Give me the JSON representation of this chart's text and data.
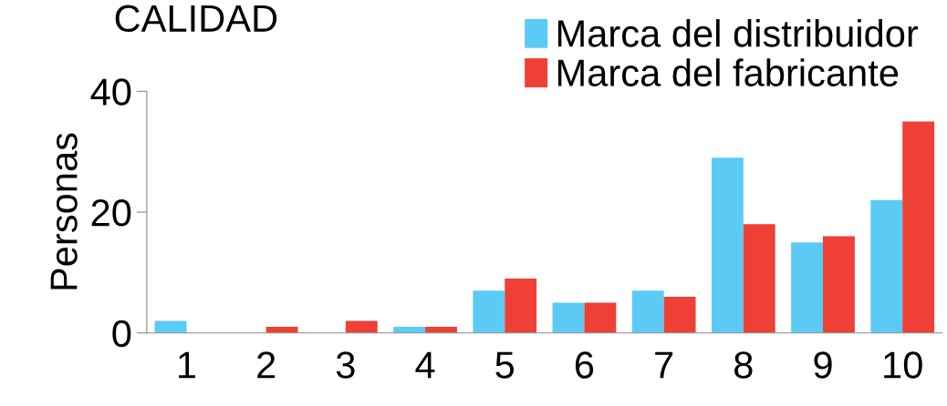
{
  "chart_data": {
    "type": "bar",
    "title": "CALIDAD",
    "ylabel": "Personas",
    "categories": [
      "1",
      "2",
      "3",
      "4",
      "5",
      "6",
      "7",
      "8",
      "9",
      "10"
    ],
    "series": [
      {
        "name": "Marca del distribuidor",
        "color": "#5bcbf5",
        "values": [
          2,
          0,
          0,
          1,
          7,
          5,
          7,
          29,
          15,
          22
        ]
      },
      {
        "name": "Marca del fabricante",
        "color": "#ee4035",
        "values": [
          0,
          1,
          2,
          1,
          9,
          5,
          6,
          18,
          16,
          35
        ]
      }
    ],
    "ylim": [
      0,
      40
    ],
    "yticks": [
      0,
      20,
      40
    ],
    "grid": false,
    "legend": "top right"
  }
}
